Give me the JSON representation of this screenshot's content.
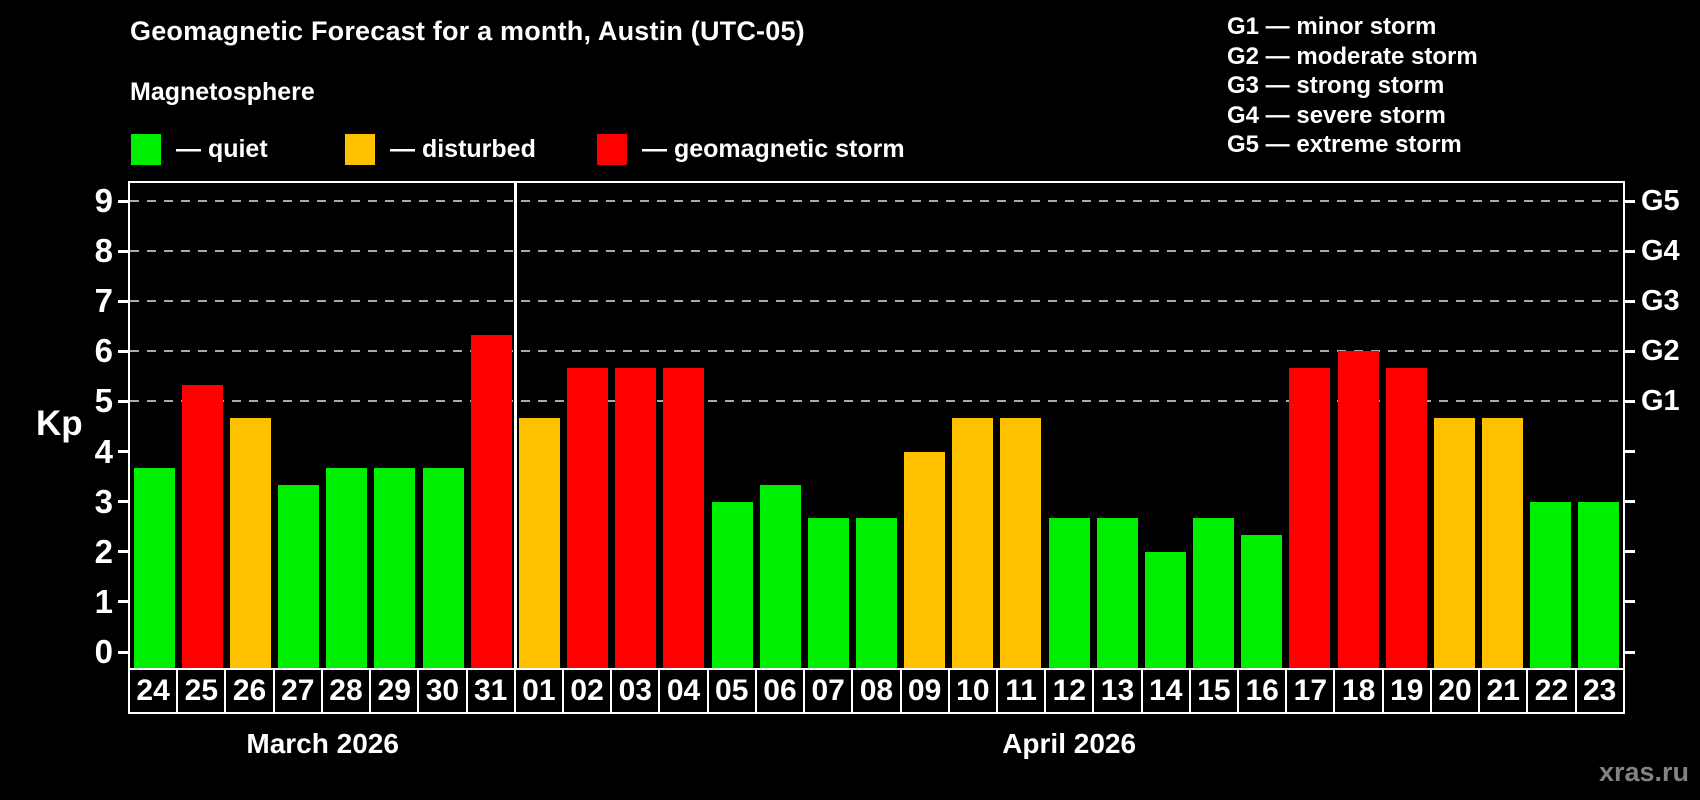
{
  "header": {
    "title": "Geomagnetic Forecast for a month, Austin (UTC-05)",
    "subtitle": "Magnetosphere"
  },
  "legend": {
    "items": [
      {
        "key": "quiet",
        "label": "— quiet",
        "color": "#00ee00"
      },
      {
        "key": "disturbed",
        "label": "— disturbed",
        "color": "#ffc000"
      },
      {
        "key": "storm",
        "label": "— geomagnetic storm",
        "color": "#ff0000"
      }
    ]
  },
  "g_legend": {
    "items": [
      "G1 — minor storm",
      "G2 — moderate storm",
      "G3 — strong storm",
      "G4 — severe storm",
      "G5 — extreme storm"
    ]
  },
  "watermark": "xras.ru",
  "chart_data": {
    "type": "bar",
    "title": "Geomagnetic Forecast for a month, Austin (UTC-05)",
    "xlabel": "",
    "ylabel": "Kp",
    "ylim": [
      0,
      9
    ],
    "yticks": [
      0,
      1,
      2,
      3,
      4,
      5,
      6,
      7,
      8,
      9
    ],
    "grid_levels": [
      5,
      6,
      7,
      8,
      9
    ],
    "grid_on": true,
    "right_axis": [
      {
        "kp": 5,
        "label": "G1"
      },
      {
        "kp": 6,
        "label": "G2"
      },
      {
        "kp": 7,
        "label": "G3"
      },
      {
        "kp": 8,
        "label": "G4"
      },
      {
        "kp": 9,
        "label": "G5"
      }
    ],
    "colors": {
      "quiet": "#00ee00",
      "disturbed": "#ffc000",
      "storm": "#ff0000"
    },
    "months": [
      {
        "label": "March 2026",
        "days": [
          "24",
          "25",
          "26",
          "27",
          "28",
          "29",
          "30",
          "31"
        ]
      },
      {
        "label": "April 2026",
        "days": [
          "01",
          "02",
          "03",
          "04",
          "05",
          "06",
          "07",
          "08",
          "09",
          "10",
          "11",
          "12",
          "13",
          "14",
          "15",
          "16",
          "17",
          "18",
          "19",
          "20",
          "21",
          "22",
          "23"
        ]
      }
    ],
    "points": [
      {
        "day": "24",
        "month": "March 2026",
        "kp": 3.67,
        "status": "quiet"
      },
      {
        "day": "25",
        "month": "March 2026",
        "kp": 5.33,
        "status": "storm"
      },
      {
        "day": "26",
        "month": "March 2026",
        "kp": 4.67,
        "status": "disturbed"
      },
      {
        "day": "27",
        "month": "March 2026",
        "kp": 3.33,
        "status": "quiet"
      },
      {
        "day": "28",
        "month": "March 2026",
        "kp": 3.67,
        "status": "quiet"
      },
      {
        "day": "29",
        "month": "March 2026",
        "kp": 3.67,
        "status": "quiet"
      },
      {
        "day": "30",
        "month": "March 2026",
        "kp": 3.67,
        "status": "quiet"
      },
      {
        "day": "31",
        "month": "March 2026",
        "kp": 6.33,
        "status": "storm"
      },
      {
        "day": "01",
        "month": "April 2026",
        "kp": 4.67,
        "status": "disturbed"
      },
      {
        "day": "02",
        "month": "April 2026",
        "kp": 5.67,
        "status": "storm"
      },
      {
        "day": "03",
        "month": "April 2026",
        "kp": 5.67,
        "status": "storm"
      },
      {
        "day": "04",
        "month": "April 2026",
        "kp": 5.67,
        "status": "storm"
      },
      {
        "day": "05",
        "month": "April 2026",
        "kp": 3.0,
        "status": "quiet"
      },
      {
        "day": "06",
        "month": "April 2026",
        "kp": 3.33,
        "status": "quiet"
      },
      {
        "day": "07",
        "month": "April 2026",
        "kp": 2.67,
        "status": "quiet"
      },
      {
        "day": "08",
        "month": "April 2026",
        "kp": 2.67,
        "status": "quiet"
      },
      {
        "day": "09",
        "month": "April 2026",
        "kp": 4.0,
        "status": "disturbed"
      },
      {
        "day": "10",
        "month": "April 2026",
        "kp": 4.67,
        "status": "disturbed"
      },
      {
        "day": "11",
        "month": "April 2026",
        "kp": 4.67,
        "status": "disturbed"
      },
      {
        "day": "12",
        "month": "April 2026",
        "kp": 2.67,
        "status": "quiet"
      },
      {
        "day": "13",
        "month": "April 2026",
        "kp": 2.67,
        "status": "quiet"
      },
      {
        "day": "14",
        "month": "April 2026",
        "kp": 2.0,
        "status": "quiet"
      },
      {
        "day": "15",
        "month": "April 2026",
        "kp": 2.67,
        "status": "quiet"
      },
      {
        "day": "16",
        "month": "April 2026",
        "kp": 2.33,
        "status": "quiet"
      },
      {
        "day": "17",
        "month": "April 2026",
        "kp": 5.67,
        "status": "storm"
      },
      {
        "day": "18",
        "month": "April 2026",
        "kp": 6.0,
        "status": "storm"
      },
      {
        "day": "19",
        "month": "April 2026",
        "kp": 5.67,
        "status": "storm"
      },
      {
        "day": "20",
        "month": "April 2026",
        "kp": 4.67,
        "status": "disturbed"
      },
      {
        "day": "21",
        "month": "April 2026",
        "kp": 4.67,
        "status": "disturbed"
      },
      {
        "day": "22",
        "month": "April 2026",
        "kp": 3.0,
        "status": "quiet"
      },
      {
        "day": "23",
        "month": "April 2026",
        "kp": 3.0,
        "status": "quiet"
      }
    ]
  }
}
